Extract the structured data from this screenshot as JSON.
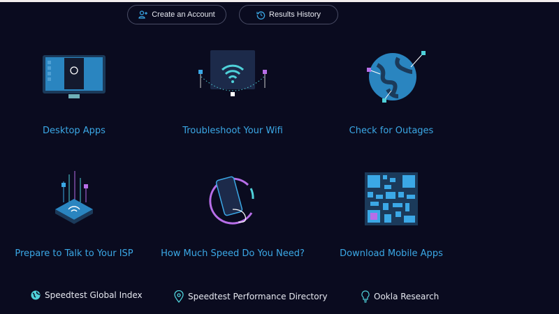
{
  "header": {
    "create_account": "Create an Account",
    "results_history": "Results History"
  },
  "tiles": [
    {
      "label": "Desktop Apps",
      "icon": "desktop-monitor-icon"
    },
    {
      "label": "Troubleshoot Your Wifi",
      "icon": "wifi-router-icon"
    },
    {
      "label": "Check for Outages",
      "icon": "globe-network-icon"
    },
    {
      "label": "Prepare to Talk to Your ISP",
      "icon": "isp-router-icon"
    },
    {
      "label": "How Much Speed Do You Need?",
      "icon": "phone-speed-icon"
    },
    {
      "label": "Download Mobile Apps",
      "icon": "qr-code-icon"
    }
  ],
  "footer": [
    {
      "label": "Speedtest Global Index",
      "icon": "globe-icon"
    },
    {
      "label": "Speedtest Performance Directory",
      "icon": "location-pin-icon"
    },
    {
      "label": "Ookla Research",
      "icon": "lightbulb-icon"
    }
  ],
  "colors": {
    "background": "#0a0b1f",
    "accent": "#3ba8e6",
    "teal": "#4fd1d9",
    "magenta": "#b76ee8"
  }
}
